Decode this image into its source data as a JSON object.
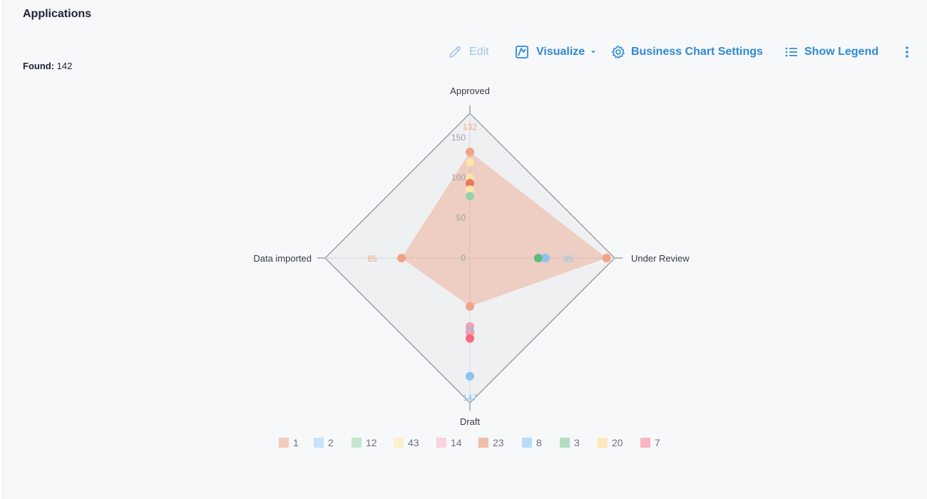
{
  "header": {
    "title": "Applications",
    "found_label": "Found:",
    "found_value": "142"
  },
  "toolbar": {
    "edit_label": "Edit",
    "visualize_label": "Visualize",
    "settings_label": "Business Chart Settings",
    "legend_label": "Show Legend"
  },
  "colors": {
    "accent": "#2f8ad6",
    "accent_disabled": "#9fc6ea"
  },
  "chart_data": {
    "type": "radar",
    "axes": [
      "Approved",
      "Under Review",
      "Draft",
      "Data imported"
    ],
    "rmax": 180,
    "ticks": [
      0,
      50,
      100,
      150
    ],
    "grid": true,
    "legend_position": "bottom",
    "axis_max_labels": [
      {
        "axis": "Approved",
        "text": "132",
        "color": "#eea789"
      },
      {
        "axis": "Under Review",
        "text": "85",
        "color": "#8cc3ef"
      },
      {
        "axis": "Data imported",
        "text": "85",
        "color": "#eea789"
      },
      {
        "axis": "Draft",
        "text": "85",
        "color": "#f4a0b2"
      },
      {
        "axis": "Draft",
        "text": "147",
        "color": "#8cc3ef"
      }
    ],
    "filled_series": {
      "name": "1",
      "values": [
        132,
        170,
        60,
        85
      ],
      "color": "#eda487"
    },
    "points": [
      {
        "axis": "Approved",
        "value": 132,
        "color": "#eda487"
      },
      {
        "axis": "Approved",
        "value": 119,
        "color": "#fbe5a9"
      },
      {
        "axis": "Approved",
        "value": 100,
        "color": "#fbe5a9"
      },
      {
        "axis": "Approved",
        "value": 93,
        "color": "#e8795a"
      },
      {
        "axis": "Approved",
        "value": 85,
        "color": "#fbe5a9"
      },
      {
        "axis": "Approved",
        "value": 77,
        "color": "#98d1ac"
      },
      {
        "axis": "Under Review",
        "value": 170,
        "color": "#eda487"
      },
      {
        "axis": "Under Review",
        "value": 92,
        "color": "#a9d3f5"
      },
      {
        "axis": "Under Review",
        "value": 94,
        "color": "#8cc3ef"
      },
      {
        "axis": "Under Review",
        "value": 85,
        "color": "#5fba7d"
      },
      {
        "axis": "Data imported",
        "value": 85,
        "color": "#eda487"
      },
      {
        "axis": "Draft",
        "value": 60,
        "color": "#eda487"
      },
      {
        "axis": "Draft",
        "value": 85,
        "color": "#f4a0b2"
      },
      {
        "axis": "Draft",
        "value": 91,
        "color": "#8cc3ef"
      },
      {
        "axis": "Draft",
        "value": 93,
        "color": "#f4a0b2"
      },
      {
        "axis": "Draft",
        "value": 100,
        "color": "#f5697f"
      },
      {
        "axis": "Draft",
        "value": 147,
        "color": "#8cc3ef"
      }
    ],
    "legend": [
      {
        "name": "1",
        "color": "#f3cbbb"
      },
      {
        "name": "2",
        "color": "#c9e2f8"
      },
      {
        "name": "12",
        "color": "#c5e5cf"
      },
      {
        "name": "43",
        "color": "#fcefcf"
      },
      {
        "name": "14",
        "color": "#fbd3dc"
      },
      {
        "name": "23",
        "color": "#f0bea5"
      },
      {
        "name": "8",
        "color": "#b8dbf7"
      },
      {
        "name": "3",
        "color": "#b5dcc1"
      },
      {
        "name": "20",
        "color": "#fbe9b9"
      },
      {
        "name": "7",
        "color": "#f9b4c1"
      }
    ]
  }
}
